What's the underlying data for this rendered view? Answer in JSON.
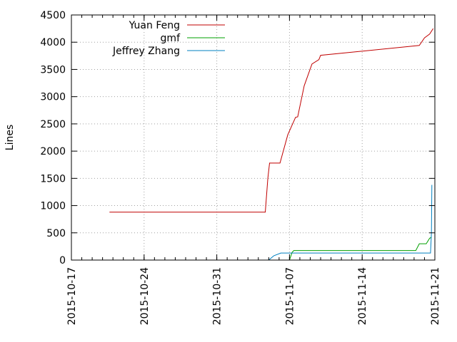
{
  "chart_data": {
    "type": "line",
    "title": "",
    "xlabel": "",
    "ylabel": "Lines",
    "ylim": [
      0,
      4500
    ],
    "xlim": [
      "2015-10-17",
      "2015-11-21"
    ],
    "y_ticks": [
      0,
      500,
      1000,
      1500,
      2000,
      2500,
      3000,
      3500,
      4000,
      4500
    ],
    "x_ticks": [
      "2015-10-17",
      "2015-10-24",
      "2015-10-31",
      "2015-11-07",
      "2015-11-14",
      "2015-11-21"
    ],
    "grid": true,
    "legend_position": "top-left",
    "series": [
      {
        "name": "Yuan Feng",
        "color": "#c00000",
        "points": [
          [
            "2015-10-20 16:00",
            880
          ],
          [
            "2015-11-04 16:00",
            880
          ],
          [
            "2015-11-04 22:00",
            1500
          ],
          [
            "2015-11-05 02:00",
            1780
          ],
          [
            "2015-11-06 02:00",
            1780
          ],
          [
            "2015-11-06 20:00",
            2300
          ],
          [
            "2015-11-07 14:00",
            2620
          ],
          [
            "2015-11-07 19:00",
            2630
          ],
          [
            "2015-11-08 10:00",
            3200
          ],
          [
            "2015-11-09 04:00",
            3600
          ],
          [
            "2015-11-09 20:00",
            3680
          ],
          [
            "2015-11-10 00:00",
            3760
          ],
          [
            "2015-11-18 12:00",
            3920
          ],
          [
            "2015-11-19 12:00",
            3940
          ],
          [
            "2015-11-20 00:00",
            4080
          ],
          [
            "2015-11-20 12:00",
            4150
          ],
          [
            "2015-11-20 20:00",
            4250
          ]
        ]
      },
      {
        "name": "gmf",
        "color": "#00a000",
        "points": [
          [
            "2015-11-07 00:00",
            0
          ],
          [
            "2015-11-07 06:00",
            140
          ],
          [
            "2015-11-07 10:00",
            175
          ],
          [
            "2015-11-19 04:00",
            175
          ],
          [
            "2015-11-19 12:00",
            300
          ],
          [
            "2015-11-20 04:00",
            300
          ],
          [
            "2015-11-20 12:00",
            400
          ],
          [
            "2015-11-20 16:00",
            420
          ]
        ]
      },
      {
        "name": "Jeffrey Zhang",
        "color": "#0080c0",
        "points": [
          [
            "2015-11-05 00:00",
            0
          ],
          [
            "2015-11-05 12:00",
            80
          ],
          [
            "2015-11-06 04:00",
            130
          ],
          [
            "2015-11-20 14:00",
            130
          ],
          [
            "2015-11-20 16:00",
            500
          ],
          [
            "2015-11-20 17:00",
            1380
          ]
        ]
      }
    ]
  }
}
